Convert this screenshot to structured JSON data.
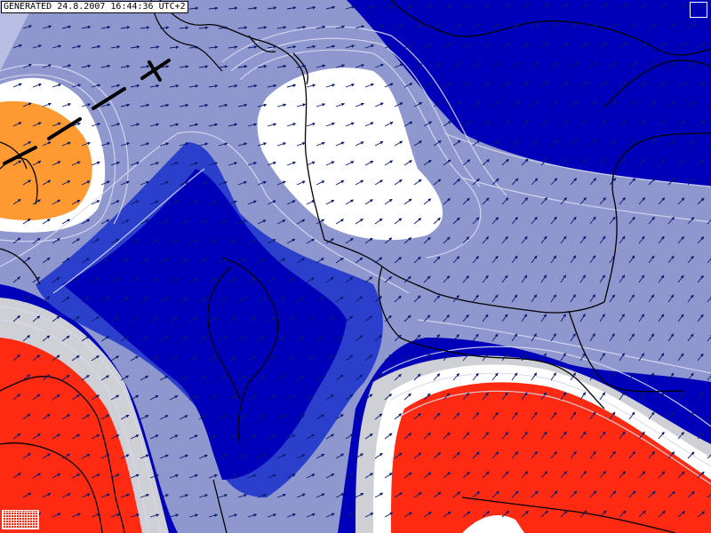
{
  "header": {
    "generated_text": "GENERATED 24.8.2007 16:44:36 UTC+2"
  },
  "colors": {
    "deep_blue": "#0000bb",
    "mid_blue": "#2a3fcc",
    "lavender": "#8f97cf",
    "light_lavender": "#b9bfe4",
    "white": "#ffffff",
    "orange": "#ff9a32",
    "red": "#ff2a12",
    "light_gray": "#cfcfd6",
    "border_black": "#000000",
    "arrow_navy": "#0b1a6e",
    "front_black": "#000000"
  },
  "map": {
    "field_regions": [
      "deep_blue",
      "mid_blue",
      "lavender",
      "white",
      "orange",
      "red"
    ],
    "wind_vectors": "SW-to-NE grid arrows",
    "front_symbol": "cold front line, NW corner"
  }
}
